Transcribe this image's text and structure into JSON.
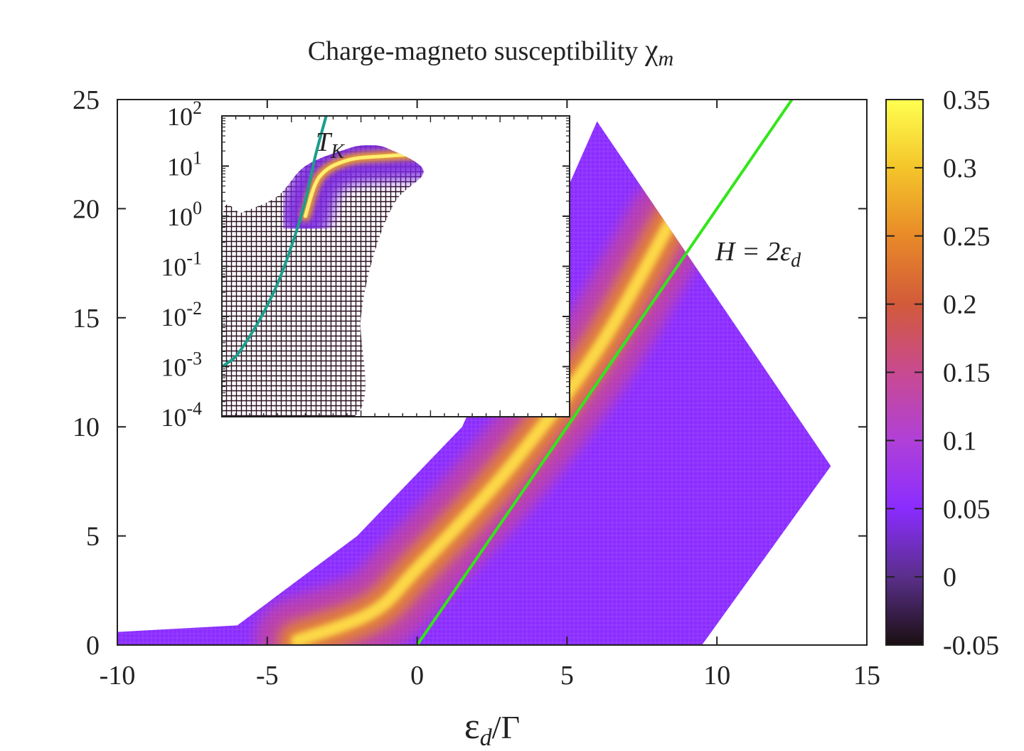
{
  "chart_data": {
    "type": "heatmap",
    "title_main": "Charge-magneto susceptibility ",
    "title_symbol": "χ",
    "title_subscript": "m",
    "xlabel": "εd/Γ",
    "ylabel": "",
    "xlim": [
      -10,
      15
    ],
    "ylim": [
      0,
      25
    ],
    "x_ticks": [
      "-10",
      "-5",
      "0",
      "5",
      "10",
      "15"
    ],
    "y_ticks": [
      "0",
      "5",
      "10",
      "15",
      "20",
      "25"
    ],
    "colorbar": {
      "range": [
        -0.05,
        0.35
      ],
      "ticks": [
        "-0.05",
        "0",
        "0.05",
        "0.1",
        "0.15",
        "0.2",
        "0.25",
        "0.3",
        "0.35"
      ],
      "colors": [
        "#1a0f12",
        "#5a2f8a",
        "#8a2cff",
        "#b040d8",
        "#c84a90",
        "#d25a3a",
        "#e88a28",
        "#f4c52a",
        "#ffff50"
      ]
    },
    "data_region_outline": [
      [
        -10,
        0
      ],
      [
        -10,
        0.6
      ],
      [
        -6,
        0.9
      ],
      [
        -2,
        5
      ],
      [
        1.5,
        10
      ],
      [
        6,
        24
      ],
      [
        13.8,
        8.2
      ],
      [
        9.5,
        0
      ],
      [
        0,
        0
      ]
    ],
    "ridge_max": [
      [
        -4,
        0.2
      ],
      [
        -1.5,
        1.5
      ],
      [
        0,
        3.5
      ],
      [
        3,
        8
      ],
      [
        6,
        13.5
      ],
      [
        8.5,
        19.5
      ]
    ],
    "line_H_eq_2ed": {
      "label_main": "H = 2ε",
      "label_subscript": "d",
      "color": "#33e61a",
      "points": [
        [
          0,
          0
        ],
        [
          12.5,
          25
        ]
      ]
    },
    "inset": {
      "xlim": [
        -10,
        15
      ],
      "y_scale": "log",
      "ylim": [
        0.0001,
        100
      ],
      "y_ticks_base": [
        "10",
        "10",
        "10",
        "10",
        "10",
        "10",
        "10"
      ],
      "y_ticks_exp": [
        "-4",
        "-3",
        "-2",
        "-1",
        "0",
        "1",
        "2"
      ],
      "tk_label_main": "T",
      "tk_label_subscript": "K",
      "tk_color": "#1a9e8c",
      "tk_curve": [
        [
          -10,
          0.001
        ],
        [
          -9,
          0.0016
        ],
        [
          -8,
          0.004
        ],
        [
          -7,
          0.012
        ],
        [
          -6,
          0.045
        ],
        [
          -5,
          0.25
        ],
        [
          -4,
          2
        ],
        [
          -3.3,
          15
        ],
        [
          -2.5,
          100
        ]
      ],
      "ridge": [
        [
          -4,
          1
        ],
        [
          -3,
          6
        ],
        [
          -1,
          13
        ],
        [
          2,
          16
        ],
        [
          4,
          17
        ]
      ]
    }
  }
}
